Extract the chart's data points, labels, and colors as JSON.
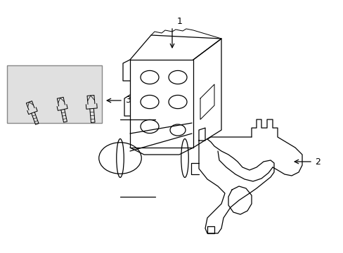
{
  "bg_color": "#ffffff",
  "line_color": "#000000",
  "box_fill": "#e0e0e0",
  "box_edge": "#888888",
  "figsize": [
    4.89,
    3.6
  ],
  "dpi": 100
}
